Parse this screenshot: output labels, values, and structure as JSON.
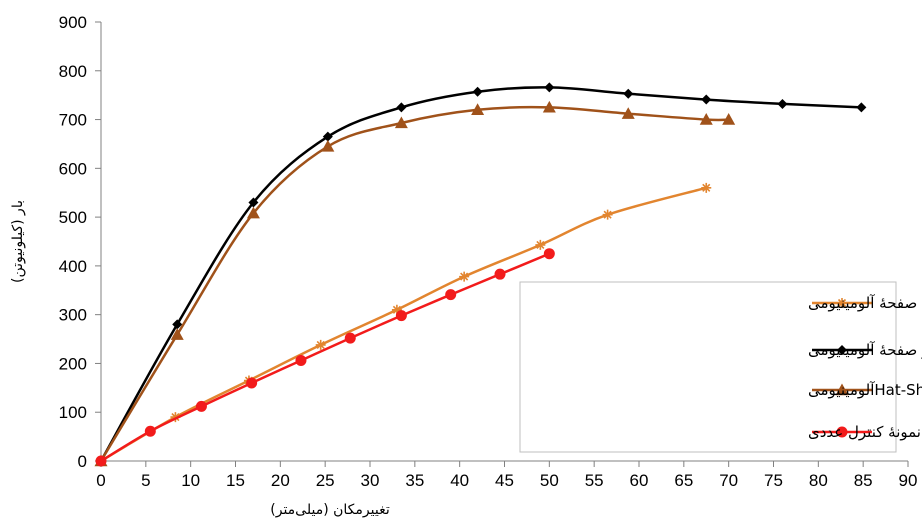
{
  "chart_data": {
    "type": "line",
    "xlabel": "تغییرمکان (میلی‌متر)",
    "ylabel": "بار (کیلونیوتن)",
    "xlim": [
      0,
      90
    ],
    "ylim": [
      0,
      900
    ],
    "xticks": [
      0,
      5,
      10,
      15,
      20,
      25,
      30,
      35,
      40,
      45,
      50,
      55,
      60,
      65,
      70,
      75,
      80,
      85,
      90
    ],
    "yticks": [
      0,
      100,
      200,
      300,
      400,
      500,
      600,
      700,
      800,
      900
    ],
    "legend_position": "bottom-right",
    "grid": false,
    "series": [
      {
        "name": "صفحهٔ آلومینیومی",
        "color": "#E2852F",
        "marker": "star",
        "x": [
          0,
          8.3,
          16.5,
          24.5,
          33,
          40.5,
          49,
          56.5,
          67.5
        ],
        "y": [
          0,
          90,
          165,
          238,
          310,
          378,
          443,
          505,
          560
        ]
      },
      {
        "name": "مقطع  Hat-Shapeو صفحهٔ آلومینیومی",
        "color": "#000000",
        "marker": "diamond",
        "x": [
          0,
          8.5,
          17,
          25.3,
          33.5,
          42,
          50,
          58.8,
          67.5,
          76,
          84.8
        ],
        "y": [
          0,
          280,
          530,
          665,
          725,
          757,
          766,
          753,
          741,
          732,
          725
        ]
      },
      {
        "name": "مقطع  Hat-Shapeآلومینیومی",
        "color": "#A0521A",
        "marker": "triangle",
        "x": [
          0,
          8.5,
          17,
          25.3,
          33.5,
          42,
          50,
          58.8,
          67.5,
          70
        ],
        "y": [
          0,
          259,
          508,
          645,
          693,
          720,
          725,
          712,
          700,
          700
        ]
      },
      {
        "name": "نمونهٔ کنترل عددی",
        "color": "#F21B1B",
        "marker": "circle",
        "x": [
          0,
          5.5,
          11.2,
          16.8,
          22.3,
          27.8,
          33.5,
          39,
          44.5,
          50
        ],
        "y": [
          0,
          61,
          112,
          160,
          206,
          252,
          298,
          341,
          383,
          425
        ]
      }
    ]
  }
}
